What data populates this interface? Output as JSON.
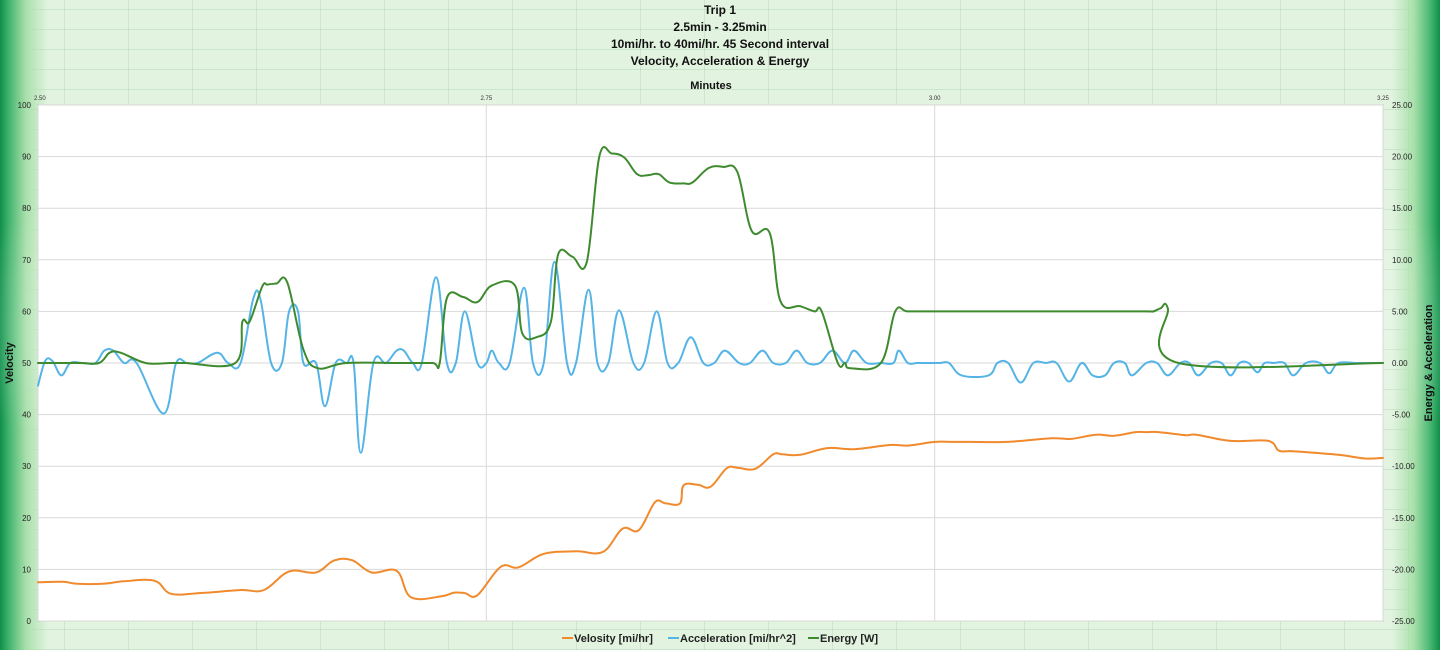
{
  "chart_data": {
    "type": "line",
    "title_lines": [
      "Trip 1",
      "2.5min - 3.25min",
      "10mi/hr. to 40mi/hr. 45 Second interval",
      "Velocity, Acceleration & Energy"
    ],
    "x_axis_title": "Minutes",
    "ylabel_left": "Velocity",
    "ylabel_right": "Energy & Acceleration",
    "xlim": [
      2.5,
      3.25
    ],
    "x_ticks": [
      2.5,
      2.75,
      3.0,
      3.25
    ],
    "x_tick_labels": [
      "2.50",
      "2.75",
      "3.00",
      "3.25"
    ],
    "ylim_left": [
      0,
      100
    ],
    "y_ticks_left": [
      0,
      10,
      20,
      30,
      40,
      50,
      60,
      70,
      80,
      90,
      100
    ],
    "y_tick_labels_left": [
      "0",
      "10",
      "20",
      "30",
      "40",
      "50",
      "60",
      "70",
      "80",
      "90",
      "100"
    ],
    "ylim_right": [
      -25,
      25
    ],
    "y_ticks_right": [
      -25,
      -20,
      -15,
      -10,
      -5,
      0,
      5,
      10,
      15,
      20,
      25
    ],
    "y_tick_labels_right": [
      "-25.00",
      "-20.00",
      "-15.00",
      "-10.00",
      "-5.00",
      "0.00",
      "5.00",
      "10.00",
      "15.00",
      "20.00",
      "25.00"
    ],
    "grid": true,
    "legend_position": "bottom",
    "colors": {
      "velocity": "#f08a2c",
      "acceleration": "#55b4e6",
      "energy": "#3e8a2e"
    },
    "series": [
      {
        "name": "Velosity [mi/hr]",
        "key": "velocity",
        "axis": "left",
        "x": [
          2.5,
          2.514,
          2.522,
          2.536,
          2.548,
          2.565,
          2.574,
          2.59,
          2.613,
          2.626,
          2.64,
          2.655,
          2.665,
          2.675,
          2.686,
          2.7,
          2.708,
          2.725,
          2.732,
          2.738,
          2.745,
          2.758,
          2.768,
          2.782,
          2.8,
          2.815,
          2.826,
          2.835,
          2.844,
          2.85,
          2.858,
          2.86,
          2.868,
          2.875,
          2.884,
          2.89,
          2.9,
          2.91,
          2.915,
          2.925,
          2.94,
          2.955,
          2.975,
          2.985,
          3.0,
          3.01,
          3.02,
          3.04,
          3.065,
          3.076,
          3.09,
          3.1,
          3.112,
          3.118,
          3.125,
          3.14,
          3.146,
          3.165,
          3.186,
          3.192,
          3.2,
          3.225,
          3.24,
          3.25
        ],
        "values": [
          7.5,
          7.6,
          7.2,
          7.2,
          7.7,
          7.8,
          5.3,
          5.4,
          6.0,
          6.0,
          9.6,
          9.4,
          11.7,
          11.8,
          9.4,
          9.7,
          4.6,
          4.8,
          5.5,
          5.4,
          5.0,
          10.5,
          10.4,
          13.0,
          13.5,
          13.4,
          17.9,
          17.6,
          23.0,
          22.8,
          22.8,
          26.3,
          26.4,
          26.0,
          29.6,
          29.7,
          29.5,
          32.3,
          32.3,
          32.2,
          33.5,
          33.3,
          34.1,
          34.0,
          34.7,
          34.7,
          34.7,
          34.7,
          35.4,
          35.3,
          36.1,
          35.9,
          36.6,
          36.6,
          36.6,
          36.0,
          36.1,
          34.9,
          34.9,
          33.0,
          32.9,
          32.2,
          31.5,
          31.6
        ]
      },
      {
        "name": "Acceleration [mi/hr^2]",
        "key": "acceleration",
        "axis": "right",
        "x": [
          2.5,
          2.504,
          2.508,
          2.513,
          2.518,
          2.525,
          2.532,
          2.537,
          2.542,
          2.548,
          2.555,
          2.57,
          2.577,
          2.583,
          2.589,
          2.6,
          2.606,
          2.613,
          2.62,
          2.624,
          2.63,
          2.636,
          2.64,
          2.645,
          2.648,
          2.655,
          2.66,
          2.666,
          2.672,
          2.676,
          2.68,
          2.687,
          2.694,
          2.7,
          2.704,
          2.709,
          2.714,
          2.722,
          2.728,
          2.733,
          2.738,
          2.745,
          2.75,
          2.753,
          2.757,
          2.763,
          2.771,
          2.776,
          2.782,
          2.788,
          2.795,
          2.8,
          2.807,
          2.812,
          2.818,
          2.824,
          2.832,
          2.838,
          2.845,
          2.851,
          2.857,
          2.864,
          2.871,
          2.877,
          2.883,
          2.891,
          2.897,
          2.904,
          2.91,
          2.917,
          2.923,
          2.929,
          2.936,
          2.943,
          2.95,
          2.955,
          2.962,
          2.97,
          2.977,
          2.98,
          2.985,
          2.99,
          2.993,
          2.998,
          3.003,
          3.008,
          3.015,
          3.03,
          3.035,
          3.041,
          3.048,
          3.055,
          3.062,
          3.068,
          3.075,
          3.082,
          3.088,
          3.095,
          3.1,
          3.106,
          3.11,
          3.118,
          3.124,
          3.13,
          3.137,
          3.142,
          3.147,
          3.154,
          3.16,
          3.165,
          3.17,
          3.175,
          3.18,
          3.184,
          3.189,
          3.195,
          3.2,
          3.207,
          3.215,
          3.22,
          3.225,
          3.235,
          3.24,
          3.25
        ],
        "values": [
          -2.2,
          0.2,
          0.2,
          -1.2,
          0.0,
          0.0,
          0.0,
          1.2,
          1.2,
          0.0,
          0.0,
          -4.9,
          0.0,
          0.0,
          0.0,
          1.0,
          0.0,
          0.0,
          6.2,
          6.2,
          0.0,
          0.0,
          5.0,
          5.0,
          0.0,
          0.0,
          -4.2,
          0.0,
          0.0,
          0.0,
          -8.7,
          0.0,
          0.0,
          1.2,
          1.2,
          0.0,
          0.0,
          8.3,
          0.0,
          0.0,
          5.0,
          0.0,
          0.0,
          1.2,
          0.0,
          0.0,
          7.3,
          0.0,
          0.0,
          9.8,
          0.0,
          0.0,
          7.1,
          0.0,
          0.0,
          5.1,
          0.0,
          0.0,
          5.0,
          0.0,
          0.0,
          2.5,
          0.0,
          0.0,
          1.2,
          0.0,
          0.0,
          1.2,
          0.0,
          0.0,
          1.2,
          0.0,
          0.0,
          1.2,
          0.0,
          1.2,
          0.0,
          0.0,
          0.0,
          1.2,
          0.0,
          0.0,
          0.0,
          0.0,
          0.0,
          0.0,
          -1.2,
          -1.2,
          0.0,
          0.0,
          -1.9,
          0.0,
          0.0,
          0.0,
          -1.8,
          0.0,
          -1.2,
          -1.2,
          0.0,
          0.0,
          -1.2,
          0.0,
          0.0,
          -1.2,
          0.0,
          0.0,
          -1.2,
          0.0,
          0.0,
          -1.2,
          0.0,
          0.0,
          -0.9,
          0.0,
          0.0,
          0.0,
          -1.2,
          0.0,
          0.0,
          -1.0,
          0.0,
          0.0,
          0.0,
          0.0
        ]
      },
      {
        "name": "Energy [W]",
        "key": "energy",
        "axis": "right",
        "x": [
          2.5,
          2.523,
          2.534,
          2.54,
          2.546,
          2.56,
          2.574,
          2.582,
          2.61,
          2.614,
          2.618,
          2.625,
          2.628,
          2.633,
          2.639,
          2.648,
          2.656,
          2.672,
          2.703,
          2.72,
          2.724,
          2.728,
          2.737,
          2.745,
          2.753,
          2.766,
          2.77,
          2.778,
          2.786,
          2.79,
          2.798,
          2.806,
          2.813,
          2.82,
          2.827,
          2.834,
          2.84,
          2.846,
          2.852,
          2.86,
          2.865,
          2.874,
          2.882,
          2.89,
          2.898,
          2.908,
          2.914,
          2.925,
          2.933,
          2.937,
          2.946,
          2.95,
          2.953,
          2.97,
          2.978,
          2.985,
          3.0,
          3.012,
          3.025,
          3.045,
          3.085,
          3.118,
          3.122,
          3.126,
          3.13,
          3.136,
          3.25
        ],
        "values": [
          0.0,
          0.0,
          0.0,
          1.0,
          1.0,
          0.0,
          0.0,
          0.0,
          0.0,
          4.0,
          4.0,
          7.4,
          7.6,
          7.7,
          7.8,
          1.3,
          -0.5,
          0.0,
          0.0,
          0.0,
          0.0,
          6.3,
          6.4,
          5.9,
          7.5,
          7.5,
          2.9,
          2.5,
          4.0,
          10.5,
          10.3,
          9.8,
          20.0,
          20.3,
          19.9,
          18.3,
          18.2,
          18.3,
          17.5,
          17.4,
          17.5,
          18.9,
          19.0,
          18.5,
          12.8,
          12.6,
          6.0,
          5.5,
          5.0,
          5.0,
          0.0,
          0.0,
          -0.5,
          0.0,
          5.0,
          5.0,
          5.0,
          5.0,
          5.0,
          5.0,
          5.0,
          5.0,
          5.0,
          5.3,
          5.3,
          0.0,
          0.0
        ]
      }
    ]
  }
}
